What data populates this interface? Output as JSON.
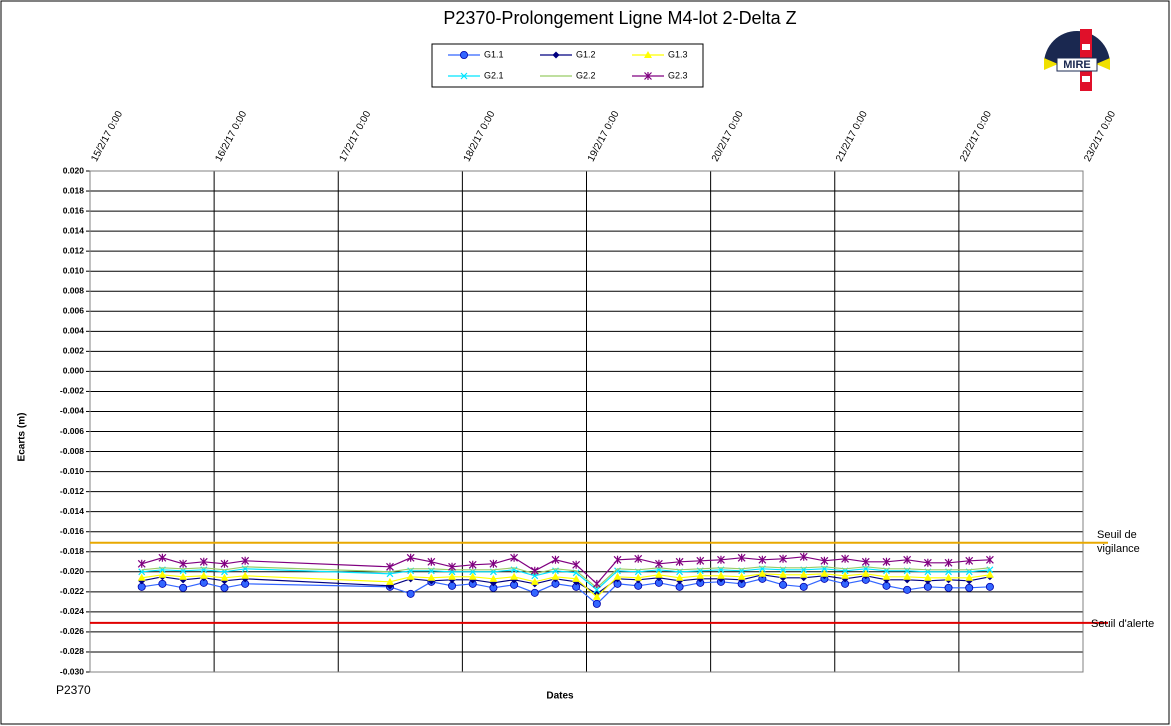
{
  "chart_data": {
    "type": "line",
    "title": "P2370-Prolongement  Ligne  M4-lot  2-Delta  Z",
    "x_label": "Dates",
    "y_label": "Ecarts (m)",
    "footer": "P2370",
    "logo_text": "MIRE",
    "xlim": [
      "15/2/17 0:00",
      "23/2/17 0:00"
    ],
    "xticks": [
      "15/2/17 0:00",
      "16/2/17 0:00",
      "17/2/17 0:00",
      "18/2/17 0:00",
      "19/2/17 0:00",
      "20/2/17 0:00",
      "21/2/17 0:00",
      "22/2/17 0:00",
      "23/2/17 0:00"
    ],
    "ylim": [
      -0.03,
      0.02
    ],
    "yticks": [
      {
        "value": -0.03,
        "label": "-0.030"
      },
      {
        "value": -0.028,
        "label": "-0.028"
      },
      {
        "value": -0.026,
        "label": "-0.026"
      },
      {
        "value": -0.024,
        "label": "-0.024"
      },
      {
        "value": -0.022,
        "label": "-0.022"
      },
      {
        "value": -0.02,
        "label": "-0.020"
      },
      {
        "value": -0.018,
        "label": "-0.018"
      },
      {
        "value": -0.016,
        "label": "-0.016"
      },
      {
        "value": -0.014,
        "label": "-0.014"
      },
      {
        "value": -0.012,
        "label": "-0.012"
      },
      {
        "value": -0.01,
        "label": "-0.010"
      },
      {
        "value": -0.008,
        "label": "-0.008"
      },
      {
        "value": -0.006,
        "label": "-0.006"
      },
      {
        "value": -0.004,
        "label": "-0.004"
      },
      {
        "value": -0.002,
        "label": "-0.002"
      },
      {
        "value": 0,
        "label": "0.000"
      },
      {
        "value": 0.002,
        "label": "0.002"
      },
      {
        "value": 0.004,
        "label": "0.004"
      },
      {
        "value": 0.006,
        "label": "0.006"
      },
      {
        "value": 0.008,
        "label": "0.008"
      },
      {
        "value": 0.01,
        "label": "0.010"
      },
      {
        "value": 0.012,
        "label": "0.012"
      },
      {
        "value": 0.014,
        "label": "0.014"
      },
      {
        "value": 0.016,
        "label": "0.016"
      },
      {
        "value": 0.018,
        "label": "0.018"
      },
      {
        "value": 0.02,
        "label": "0.020"
      }
    ],
    "grid": true,
    "thresholds": [
      {
        "label": "Seuil de vigilance",
        "value": -0.0171,
        "color": "#e8a800"
      },
      {
        "label": "Seuil d'alerte",
        "value": -0.0251,
        "color": "#e00000"
      }
    ],
    "x": [
      "15/2/17 10:00",
      "15/2/17 14:00",
      "15/2/17 18:00",
      "15/2/17 22:00",
      "16/2/17 2:00",
      "16/2/17 6:00",
      "17/2/17 10:00",
      "17/2/17 14:00",
      "17/2/17 18:00",
      "17/2/17 22:00",
      "18/2/17 2:00",
      "18/2/17 6:00",
      "18/2/17 10:00",
      "18/2/17 14:00",
      "18/2/17 18:00",
      "18/2/17 22:00",
      "19/2/17 2:00",
      "19/2/17 6:00",
      "19/2/17 10:00",
      "19/2/17 14:00",
      "19/2/17 18:00",
      "19/2/17 22:00",
      "20/2/17 2:00",
      "20/2/17 6:00",
      "20/2/17 10:00",
      "20/2/17 14:00",
      "20/2/17 18:00",
      "20/2/17 22:00",
      "21/2/17 2:00",
      "21/2/17 6:00",
      "21/2/17 10:00",
      "21/2/17 14:00",
      "21/2/17 18:00",
      "21/2/17 22:00",
      "22/2/17 2:00",
      "22/2/17 6:00"
    ],
    "series": [
      {
        "name": "G1.1",
        "color": "#3366ff",
        "marker": "circle",
        "values": [
          -0.0215,
          -0.0212,
          -0.0216,
          -0.0211,
          -0.0216,
          -0.0212,
          -0.0215,
          -0.0222,
          -0.021,
          -0.0214,
          -0.0212,
          -0.0216,
          -0.0213,
          -0.0221,
          -0.0212,
          -0.0215,
          -0.0232,
          -0.0212,
          -0.0214,
          -0.0211,
          -0.0215,
          -0.0211,
          -0.021,
          -0.0212,
          -0.0207,
          -0.0213,
          -0.0215,
          -0.0207,
          -0.0212,
          -0.0208,
          -0.0214,
          -0.0218,
          -0.0215,
          -0.0216,
          -0.0216,
          -0.0215
        ]
      },
      {
        "name": "G1.2",
        "color": "#000080",
        "marker": "diamond",
        "values": [
          -0.0209,
          -0.0205,
          -0.0208,
          -0.0206,
          -0.0209,
          -0.0207,
          -0.0214,
          -0.0207,
          -0.0209,
          -0.0208,
          -0.0208,
          -0.0211,
          -0.0208,
          -0.0212,
          -0.0207,
          -0.021,
          -0.0222,
          -0.0207,
          -0.0208,
          -0.0206,
          -0.0209,
          -0.0207,
          -0.0207,
          -0.0208,
          -0.0203,
          -0.0206,
          -0.0206,
          -0.0204,
          -0.0207,
          -0.0204,
          -0.0208,
          -0.0208,
          -0.0209,
          -0.0208,
          -0.0209,
          -0.0205
        ]
      },
      {
        "name": "G1.3",
        "color": "#ffff00",
        "marker": "triangle",
        "values": [
          -0.0206,
          -0.0203,
          -0.0205,
          -0.0204,
          -0.0206,
          -0.0204,
          -0.021,
          -0.0205,
          -0.0206,
          -0.0205,
          -0.0205,
          -0.0207,
          -0.0205,
          -0.021,
          -0.0205,
          -0.0207,
          -0.0225,
          -0.0205,
          -0.0206,
          -0.0203,
          -0.0206,
          -0.0204,
          -0.0204,
          -0.0205,
          -0.0202,
          -0.0203,
          -0.0203,
          -0.0202,
          -0.0204,
          -0.0202,
          -0.0205,
          -0.0205,
          -0.0206,
          -0.0206,
          -0.0206,
          -0.0203
        ]
      },
      {
        "name": "G2.1",
        "color": "#00e5ff",
        "marker": "x",
        "values": [
          -0.02,
          -0.0198,
          -0.0199,
          -0.0198,
          -0.02,
          -0.0197,
          -0.0202,
          -0.0199,
          -0.0199,
          -0.02,
          -0.02,
          -0.02,
          -0.0198,
          -0.0204,
          -0.0199,
          -0.0201,
          -0.0218,
          -0.0199,
          -0.02,
          -0.0198,
          -0.02,
          -0.0199,
          -0.0198,
          -0.0199,
          -0.0197,
          -0.0198,
          -0.0198,
          -0.0197,
          -0.0199,
          -0.0197,
          -0.0199,
          -0.0199,
          -0.02,
          -0.02,
          -0.02,
          -0.0198
        ]
      },
      {
        "name": "G2.2",
        "color": "#99cc66",
        "marker": "none",
        "values": [
          -0.0198,
          -0.0196,
          -0.0197,
          -0.0196,
          -0.0198,
          -0.0195,
          -0.02,
          -0.0197,
          -0.0197,
          -0.0198,
          -0.0198,
          -0.0198,
          -0.0196,
          -0.0202,
          -0.0197,
          -0.0199,
          -0.0216,
          -0.0197,
          -0.0198,
          -0.0196,
          -0.0198,
          -0.0197,
          -0.0196,
          -0.0197,
          -0.0195,
          -0.0196,
          -0.0196,
          -0.0195,
          -0.0197,
          -0.0195,
          -0.0197,
          -0.0197,
          -0.0198,
          -0.0198,
          -0.0198,
          -0.0196
        ]
      },
      {
        "name": "G2.3",
        "color": "#800080",
        "marker": "star",
        "values": [
          -0.0192,
          -0.0186,
          -0.0192,
          -0.019,
          -0.0192,
          -0.0189,
          -0.0195,
          -0.0186,
          -0.019,
          -0.0195,
          -0.0193,
          -0.0192,
          -0.0186,
          -0.0199,
          -0.0188,
          -0.0193,
          -0.0212,
          -0.0188,
          -0.0187,
          -0.0192,
          -0.019,
          -0.0189,
          -0.0188,
          -0.0186,
          -0.0188,
          -0.0187,
          -0.0185,
          -0.0189,
          -0.0187,
          -0.019,
          -0.019,
          -0.0188,
          -0.0191,
          -0.0191,
          -0.0189,
          -0.0188
        ]
      }
    ]
  }
}
